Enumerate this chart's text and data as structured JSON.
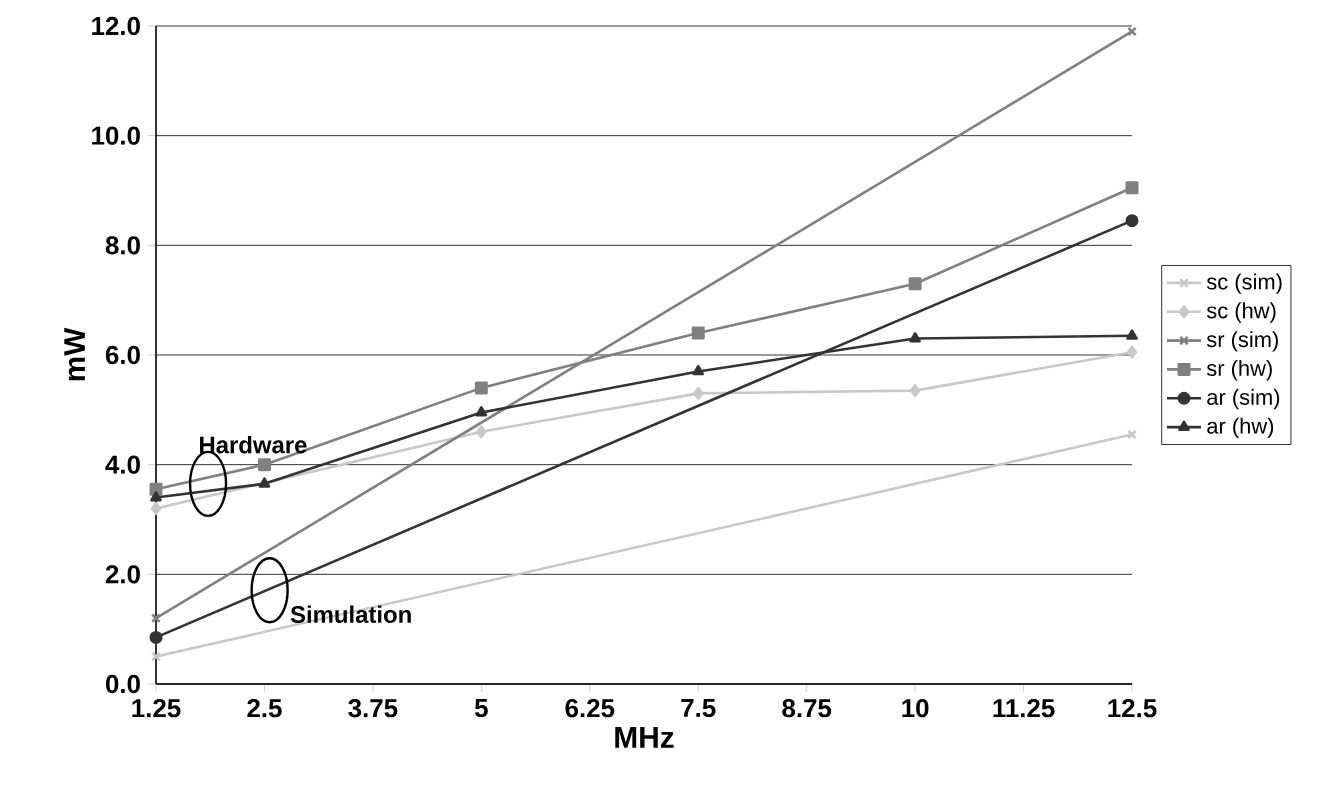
{
  "chart_data": {
    "type": "line",
    "xlabel": "MHz",
    "ylabel": "mW",
    "xlim": [
      1.25,
      12.5
    ],
    "xticks": [
      1.25,
      2.5,
      3.75,
      5,
      6.25,
      7.5,
      8.75,
      10,
      11.25,
      12.5
    ],
    "ylim": [
      0,
      12
    ],
    "yticks": [
      {
        "value": 0,
        "label": "0.0"
      },
      {
        "value": 2,
        "label": "2.0"
      },
      {
        "value": 4,
        "label": "4.0"
      },
      {
        "value": 6,
        "label": "6.0"
      },
      {
        "value": 8,
        "label": "8.0"
      },
      {
        "value": 10,
        "label": "10.0"
      },
      {
        "value": 12,
        "label": "12.0"
      }
    ],
    "grid": "y",
    "legend": "right",
    "line_style": "solid",
    "series": [
      {
        "name": "sc (sim)",
        "color": "#c8c8c8",
        "marker": "cross",
        "x": [
          1.25,
          12.5
        ],
        "values": [
          0.5,
          4.55
        ]
      },
      {
        "name": "sc (hw)",
        "color": "#c8c8c8",
        "marker": "diamond",
        "x": [
          1.25,
          2.5,
          5,
          7.5,
          10,
          12.5
        ],
        "values": [
          3.2,
          null,
          4.6,
          5.3,
          5.35,
          6.05
        ]
      },
      {
        "name": "sr (sim)",
        "color": "#808080",
        "marker": "cross",
        "x": [
          1.25,
          12.5
        ],
        "values": [
          1.2,
          11.9
        ]
      },
      {
        "name": "sr (hw)",
        "color": "#808080",
        "marker": "square",
        "x": [
          1.25,
          2.5,
          5,
          7.5,
          10,
          12.5
        ],
        "values": [
          3.55,
          4.0,
          5.4,
          6.4,
          7.3,
          9.05
        ]
      },
      {
        "name": "ar (sim)",
        "color": "#333333",
        "marker": "circle",
        "x": [
          1.25,
          12.5
        ],
        "values": [
          0.85,
          8.45
        ]
      },
      {
        "name": "ar (hw)",
        "color": "#333333",
        "marker": "triangle",
        "x": [
          1.25,
          2.5,
          5,
          7.5,
          10,
          12.5
        ],
        "values": [
          3.4,
          3.65,
          4.95,
          5.7,
          6.3,
          6.35
        ]
      }
    ],
    "annotations": [
      {
        "text": "Hardware",
        "x": 1.85,
        "y": 3.65
      },
      {
        "text": "Simulation",
        "x": 2.56,
        "y": 1.71
      }
    ]
  }
}
